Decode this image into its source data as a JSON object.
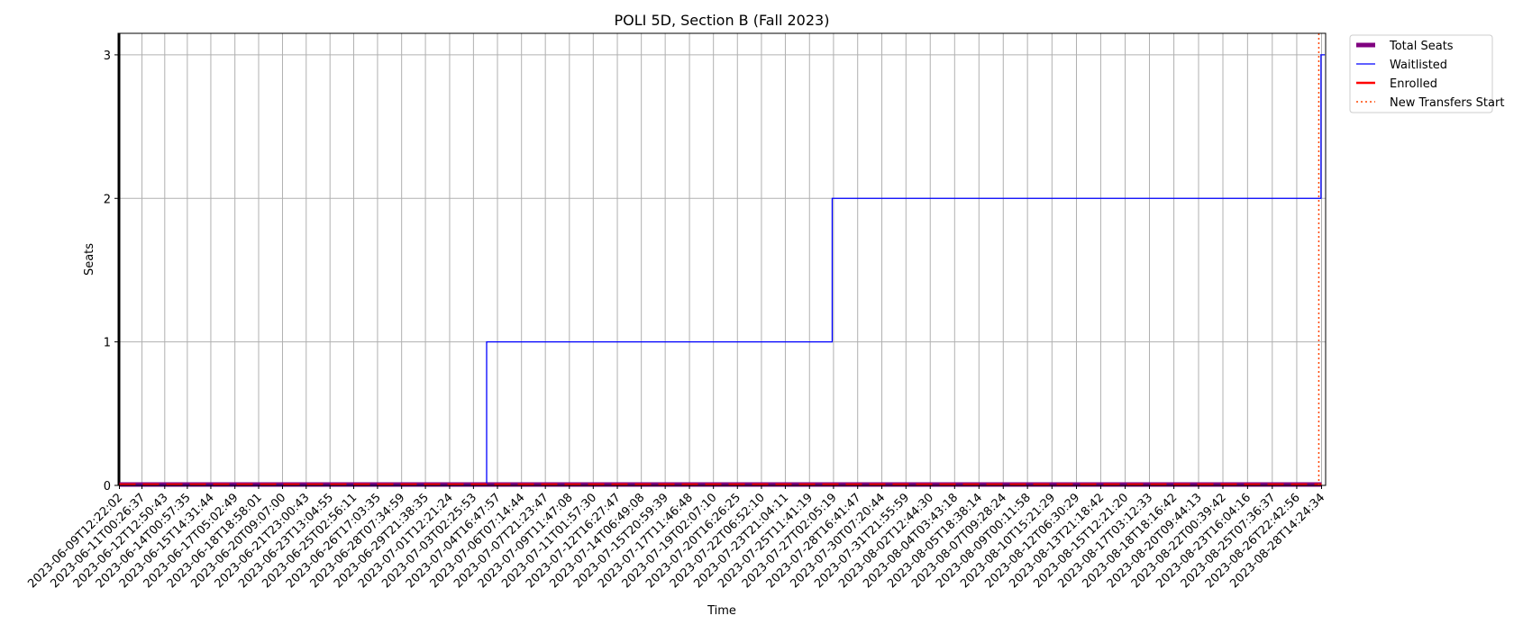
{
  "chart_data": {
    "type": "line",
    "title": "POLI 5D, Section B (Fall 2023)",
    "xlabel": "Time",
    "ylabel": "Seats",
    "ylim": [
      0,
      3.15
    ],
    "y_ticks": [
      0,
      1,
      2,
      3
    ],
    "grid": true,
    "legend_position": "outside-top-right",
    "x_ticks": [
      "2023-06-09T12:22:02",
      "2023-06-11T00:26:37",
      "2023-06-12T12:50:43",
      "2023-06-14T00:57:35",
      "2023-06-15T14:31:44",
      "2023-06-17T05:02:49",
      "2023-06-18T18:58:01",
      "2023-06-20T09:07:00",
      "2023-06-21T23:00:43",
      "2023-06-23T13:04:55",
      "2023-06-25T02:56:11",
      "2023-06-26T17:03:35",
      "2023-06-28T07:34:59",
      "2023-06-29T21:38:35",
      "2023-07-01T12:21:24",
      "2023-07-03T02:25:53",
      "2023-07-04T16:47:57",
      "2023-07-06T07:14:44",
      "2023-07-07T21:23:47",
      "2023-07-09T11:47:08",
      "2023-07-11T01:57:30",
      "2023-07-12T16:27:47",
      "2023-07-14T06:49:08",
      "2023-07-15T20:59:39",
      "2023-07-17T11:46:48",
      "2023-07-19T02:07:10",
      "2023-07-20T16:26:25",
      "2023-07-22T06:52:10",
      "2023-07-23T21:04:11",
      "2023-07-25T11:41:19",
      "2023-07-27T02:05:19",
      "2023-07-28T16:41:47",
      "2023-07-30T07:20:44",
      "2023-07-31T21:55:59",
      "2023-08-02T12:44:30",
      "2023-08-04T03:43:18",
      "2023-08-05T18:38:14",
      "2023-08-07T09:28:24",
      "2023-08-09T00:11:58",
      "2023-08-10T15:21:29",
      "2023-08-12T06:30:29",
      "2023-08-13T21:18:42",
      "2023-08-15T12:21:20",
      "2023-08-17T03:12:33",
      "2023-08-18T18:16:42",
      "2023-08-20T09:44:13",
      "2023-08-22T00:39:42",
      "2023-08-23T16:04:16",
      "2023-08-25T07:36:37",
      "2023-08-26T22:42:56",
      "2023-08-28T14:24:34"
    ],
    "series": [
      {
        "name": "Total Seats",
        "color": "#800080",
        "style": "thick-solid",
        "points": [
          {
            "x": "2023-06-09T12:22:02",
            "y": 0
          },
          {
            "x": "2023-08-28T14:24:34",
            "y": 0
          }
        ]
      },
      {
        "name": "Waitlisted",
        "color": "#0000ff",
        "style": "step",
        "points": [
          {
            "x": "2023-06-09T12:22:02",
            "y": 0
          },
          {
            "x": "2023-07-03T23:30:00",
            "y": 1
          },
          {
            "x": "2023-07-27T00:00:00",
            "y": 2
          },
          {
            "x": "2023-08-28T13:30:00",
            "y": 3
          }
        ]
      },
      {
        "name": "Enrolled",
        "color": "#ff0000",
        "style": "dashed",
        "points": [
          {
            "x": "2023-06-09T12:22:02",
            "y": 0
          },
          {
            "x": "2023-08-28T14:24:34",
            "y": 0
          }
        ]
      },
      {
        "name": "New Transfers Start",
        "color": "#ff4500",
        "style": "dotted-vertical",
        "x": "2023-08-28T10:00:00"
      }
    ],
    "vertical_markers": [
      {
        "x": "2023-06-09T12:22:02",
        "color": "#000000"
      }
    ]
  }
}
